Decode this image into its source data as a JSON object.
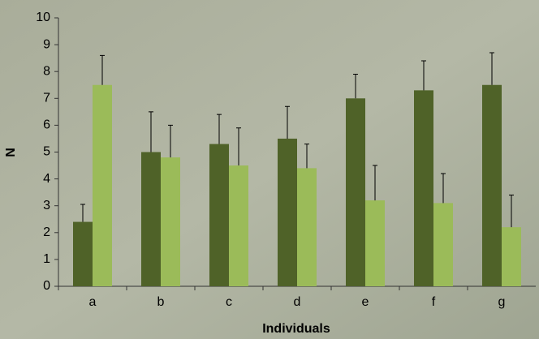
{
  "chart_data": {
    "type": "bar",
    "x_label": "Individuals",
    "y_label": "N",
    "categories": [
      "a",
      "b",
      "c",
      "d",
      "e",
      "f",
      "g"
    ],
    "series": [
      {
        "color": "#4f6228",
        "values": [
          2.4,
          5.0,
          5.3,
          5.5,
          7.0,
          7.3,
          7.5
        ],
        "errors": [
          0.65,
          1.5,
          1.1,
          1.2,
          0.9,
          1.1,
          1.2
        ]
      },
      {
        "color": "#9bbb59",
        "values": [
          7.5,
          4.8,
          4.5,
          4.4,
          3.2,
          3.1,
          2.2
        ],
        "errors": [
          1.1,
          1.2,
          1.4,
          0.9,
          1.3,
          1.1,
          1.2
        ]
      }
    ],
    "ylim": [
      0,
      10
    ],
    "yticks": [
      0,
      1,
      2,
      3,
      4,
      5,
      6,
      7,
      8,
      9,
      10
    ]
  }
}
